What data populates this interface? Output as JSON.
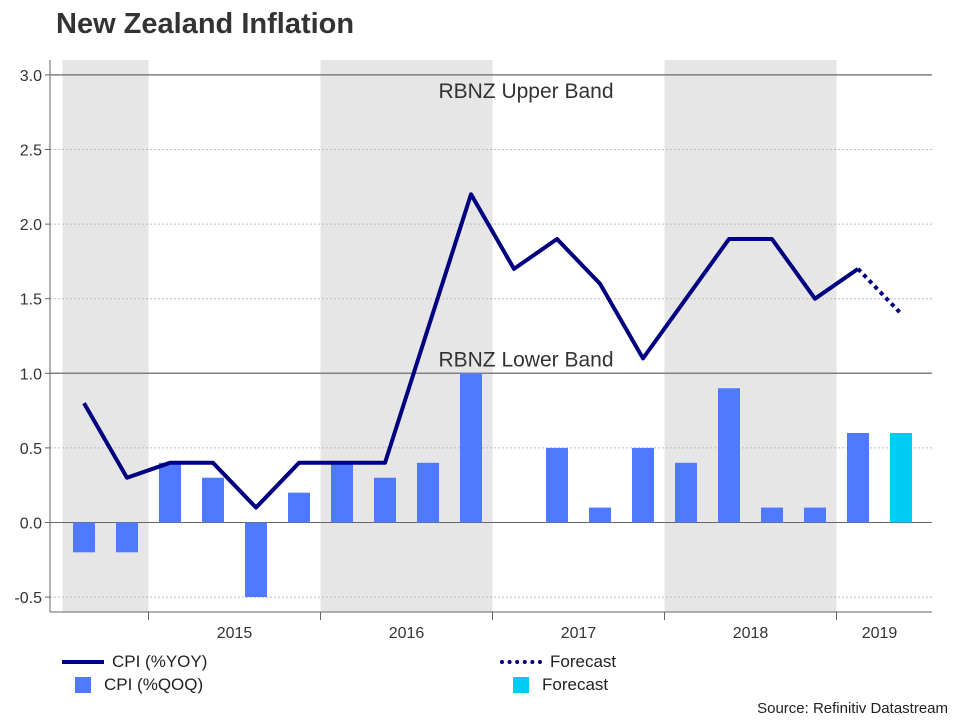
{
  "chart_data": {
    "type": "bar+line",
    "title": "New Zealand Inflation",
    "ylim": [
      -0.6,
      3.1
    ],
    "yticks": [
      "-0.5",
      "0.0",
      "0.5",
      "1.0",
      "1.5",
      "2.0",
      "2.5",
      "3.0"
    ],
    "ytick_values": [
      -0.5,
      0.0,
      0.5,
      1.0,
      1.5,
      2.0,
      2.5,
      3.0
    ],
    "year_labels": [
      "2015",
      "2016",
      "2017",
      "2018",
      "2019"
    ],
    "quarters": [
      "2014-Q3",
      "2014-Q4",
      "2015-Q1",
      "2015-Q2",
      "2015-Q3",
      "2015-Q4",
      "2016-Q1",
      "2016-Q2",
      "2016-Q3",
      "2016-Q4",
      "2017-Q1",
      "2017-Q2",
      "2017-Q3",
      "2017-Q4",
      "2018-Q1",
      "2018-Q2",
      "2018-Q3",
      "2018-Q4",
      "2019-Q1",
      "2019-Q2"
    ],
    "series": [
      {
        "name": "CPI (%YOY)",
        "kind": "line",
        "color": "#000080",
        "values": [
          0.8,
          0.3,
          0.4,
          0.4,
          0.1,
          0.4,
          0.4,
          0.4,
          1.3,
          2.2,
          1.7,
          1.9,
          1.6,
          1.1,
          1.5,
          1.9,
          1.9,
          1.5,
          1.7,
          null
        ]
      },
      {
        "name": "Forecast",
        "kind": "dotted-line",
        "color": "#000080",
        "values": [
          null,
          null,
          null,
          null,
          null,
          null,
          null,
          null,
          null,
          null,
          null,
          null,
          null,
          null,
          null,
          null,
          null,
          null,
          1.7,
          1.4
        ]
      },
      {
        "name": "CPI (%QOQ)",
        "kind": "bar",
        "color": "#4f7aff",
        "values": [
          -0.2,
          -0.2,
          0.4,
          0.3,
          -0.5,
          0.2,
          0.4,
          0.3,
          0.4,
          1.0,
          0.0,
          0.5,
          0.1,
          0.5,
          0.4,
          0.9,
          0.1,
          0.1,
          0.6,
          null
        ]
      },
      {
        "name": "Forecast",
        "kind": "bar",
        "color": "#00ccf5",
        "values": [
          null,
          null,
          null,
          null,
          null,
          null,
          null,
          null,
          null,
          null,
          null,
          null,
          null,
          null,
          null,
          null,
          null,
          null,
          null,
          0.6
        ]
      }
    ],
    "shaded_years": [
      "2014",
      "2016",
      "2018"
    ],
    "reference_lines": [
      {
        "value": 3.0,
        "label": "RBNZ Upper Band"
      },
      {
        "value": 1.0,
        "label": "RBNZ Lower Band"
      }
    ],
    "grid": true,
    "legend_position": "bottom"
  },
  "legend": {
    "yoy": "CPI (%YOY)",
    "qoq": "CPI (%QOQ)",
    "forecast_line": "Forecast",
    "forecast_bar": "Forecast"
  },
  "source": "Source: Refinitiv Datastream",
  "colors": {
    "line": "#000080",
    "bar": "#4f7aff",
    "forecast_bar": "#00ccf5",
    "shade": "#e6e6e6"
  }
}
